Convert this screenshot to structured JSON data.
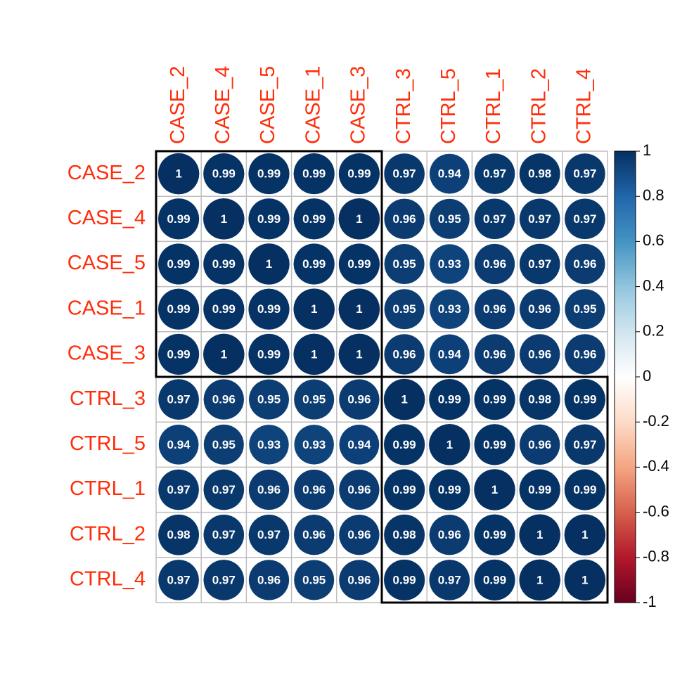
{
  "chart_data": {
    "type": "corrplot",
    "categories": [
      "CASE_2",
      "CASE_4",
      "CASE_5",
      "CASE_1",
      "CASE_3",
      "CTRL_3",
      "CTRL_5",
      "CTRL_1",
      "CTRL_2",
      "CTRL_4"
    ],
    "values": [
      [
        1,
        0.99,
        0.99,
        0.99,
        0.99,
        0.97,
        0.94,
        0.97,
        0.98,
        0.97
      ],
      [
        0.99,
        1,
        0.99,
        0.99,
        1,
        0.96,
        0.95,
        0.97,
        0.97,
        0.97
      ],
      [
        0.99,
        0.99,
        1,
        0.99,
        0.99,
        0.95,
        0.93,
        0.96,
        0.97,
        0.96
      ],
      [
        0.99,
        0.99,
        0.99,
        1,
        1,
        0.95,
        0.93,
        0.96,
        0.96,
        0.95
      ],
      [
        0.99,
        1,
        0.99,
        1,
        1,
        0.96,
        0.94,
        0.96,
        0.96,
        0.96
      ],
      [
        0.97,
        0.96,
        0.95,
        0.95,
        0.96,
        1,
        0.99,
        0.99,
        0.98,
        0.99
      ],
      [
        0.94,
        0.95,
        0.93,
        0.93,
        0.94,
        0.99,
        1,
        0.99,
        0.96,
        0.97
      ],
      [
        0.97,
        0.97,
        0.96,
        0.96,
        0.96,
        0.99,
        0.99,
        1,
        0.99,
        0.99
      ],
      [
        0.98,
        0.97,
        0.97,
        0.96,
        0.96,
        0.98,
        0.96,
        0.99,
        1,
        1
      ],
      [
        0.97,
        0.97,
        0.96,
        0.95,
        0.96,
        0.99,
        0.97,
        0.99,
        1,
        1
      ]
    ],
    "zlim": [
      -1,
      1
    ],
    "zticks": [
      -1,
      -0.8,
      -0.6,
      -0.4,
      -0.2,
      0,
      0.2,
      0.4,
      0.6,
      0.8,
      1
    ],
    "colorscale": [
      "#67001F",
      "#B2182B",
      "#D6604D",
      "#F4A582",
      "#FDDBC7",
      "#FFFFFF",
      "#D1E5F0",
      "#92C5DE",
      "#4393C3",
      "#2166AC",
      "#053061"
    ],
    "label_color": "#ff2d0a",
    "cluster_sizes": [
      5,
      5
    ]
  }
}
